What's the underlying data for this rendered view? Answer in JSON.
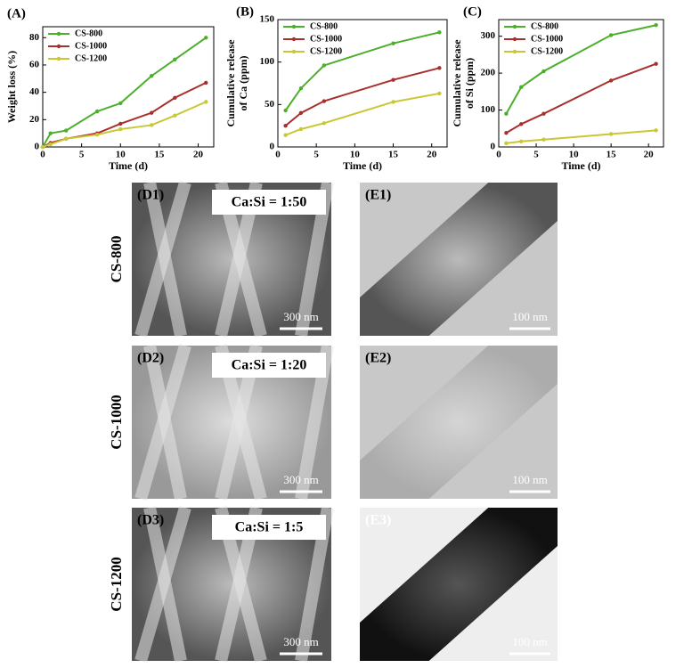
{
  "chart_data": [
    {
      "type": "line",
      "title": "(A)",
      "xlabel": "Time (d)",
      "ylabel": [
        "Weight loss (%)"
      ],
      "x": [
        0,
        1,
        3,
        7,
        10,
        14,
        17,
        21
      ],
      "xlim": [
        0,
        22
      ],
      "xticks": [
        0,
        5,
        10,
        15,
        20
      ],
      "ylim": [
        0,
        88
      ],
      "yticks": [
        0,
        20,
        40,
        60,
        80
      ],
      "legend": "upper left",
      "series": [
        {
          "name": "CS-800",
          "color": "#4caf2a",
          "values": [
            0,
            10,
            12,
            26,
            32,
            52,
            64,
            80
          ]
        },
        {
          "name": "CS-1000",
          "color": "#a8302c",
          "values": [
            0,
            3,
            6,
            10,
            17,
            25,
            36,
            47
          ]
        },
        {
          "name": "CS-1200",
          "color": "#c8c832",
          "values": [
            0,
            2,
            6,
            9,
            13,
            16,
            23,
            33
          ]
        }
      ]
    },
    {
      "type": "line",
      "title": "(B)",
      "xlabel": "Time (d)",
      "ylabel": [
        "Cumulative release",
        "of Ca (ppm)"
      ],
      "x": [
        1,
        3,
        6,
        15,
        21
      ],
      "xlim": [
        0,
        22
      ],
      "xticks": [
        0,
        5,
        10,
        15,
        20
      ],
      "ylim": [
        0,
        150
      ],
      "yticks": [
        0,
        50,
        100,
        150
      ],
      "legend": "upper left",
      "series": [
        {
          "name": "CS-800",
          "color": "#4caf2a",
          "values": [
            43,
            69,
            96,
            122,
            135
          ]
        },
        {
          "name": "CS-1000",
          "color": "#a8302c",
          "values": [
            25,
            40,
            54,
            79,
            93
          ]
        },
        {
          "name": "CS-1200",
          "color": "#c8c832",
          "values": [
            14,
            21,
            28,
            53,
            63
          ]
        }
      ]
    },
    {
      "type": "line",
      "title": "(C)",
      "xlabel": "Time (d)",
      "ylabel": [
        "Cumulative release",
        "of Si (ppm)"
      ],
      "x": [
        1,
        3,
        6,
        15,
        21
      ],
      "xlim": [
        0,
        22
      ],
      "xticks": [
        0,
        5,
        10,
        15,
        20
      ],
      "ylim": [
        0,
        345
      ],
      "yticks": [
        0,
        100,
        200,
        300
      ],
      "legend": "upper left",
      "series": [
        {
          "name": "CS-800",
          "color": "#4caf2a",
          "values": [
            90,
            162,
            205,
            303,
            330
          ]
        },
        {
          "name": "CS-1000",
          "color": "#a8302c",
          "values": [
            38,
            62,
            90,
            180,
            225
          ]
        },
        {
          "name": "CS-1200",
          "color": "#c8c832",
          "values": [
            10,
            15,
            20,
            35,
            45
          ]
        }
      ]
    }
  ],
  "rows": [
    "CS-800",
    "CS-1000",
    "CS-1200"
  ],
  "sem_panels": [
    {
      "label": "(D1)",
      "ratio": "Ca:Si = 1:50",
      "scale": "300 nm"
    },
    {
      "label": "(D2)",
      "ratio": "Ca:Si = 1:20",
      "scale": "300 nm"
    },
    {
      "label": "(D3)",
      "ratio": "Ca:Si = 1:5",
      "scale": "300 nm"
    }
  ],
  "tem_panels": [
    {
      "label": "(E1)",
      "scale": "100 nm"
    },
    {
      "label": "(E2)",
      "scale": "100 nm"
    },
    {
      "label": "(E3)",
      "scale": "100 nm"
    }
  ]
}
